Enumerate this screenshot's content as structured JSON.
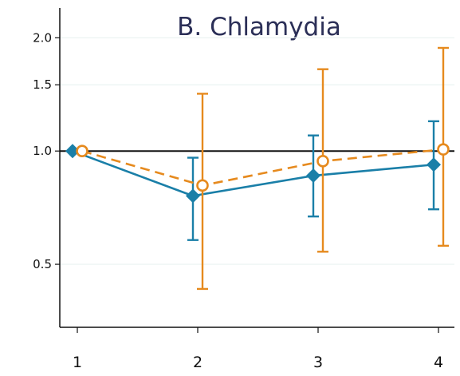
{
  "chart_data": {
    "type": "line",
    "title": "B. Chlamydia",
    "xlabel": "",
    "ylabel": "",
    "y_scale": "log",
    "ylim": [
      0.34,
      2.4
    ],
    "x_ticks": [
      "1",
      "2",
      "3",
      "4"
    ],
    "y_ticks": [
      "0.5",
      "1.0",
      "1.5",
      "2.0"
    ],
    "reference_line": 1.0,
    "grid": true,
    "legend": "none",
    "series": [
      {
        "color": "#1a7fa8",
        "marker": "diamond",
        "line_style": "solid",
        "x": [
          1,
          2,
          3,
          4
        ],
        "y": [
          1.0,
          0.76,
          0.86,
          0.92
        ],
        "ci_low": [
          null,
          0.58,
          0.67,
          0.7
        ],
        "ci_high": [
          null,
          0.96,
          1.1,
          1.2
        ]
      },
      {
        "color": "#e68a1e",
        "marker": "hollow-circle",
        "line_style": "dashed",
        "x": [
          1,
          2,
          3,
          4
        ],
        "y": [
          1.0,
          0.81,
          0.94,
          1.01
        ],
        "ci_low": [
          null,
          0.43,
          0.54,
          0.56
        ],
        "ci_high": [
          null,
          1.42,
          1.65,
          1.88
        ]
      }
    ]
  }
}
